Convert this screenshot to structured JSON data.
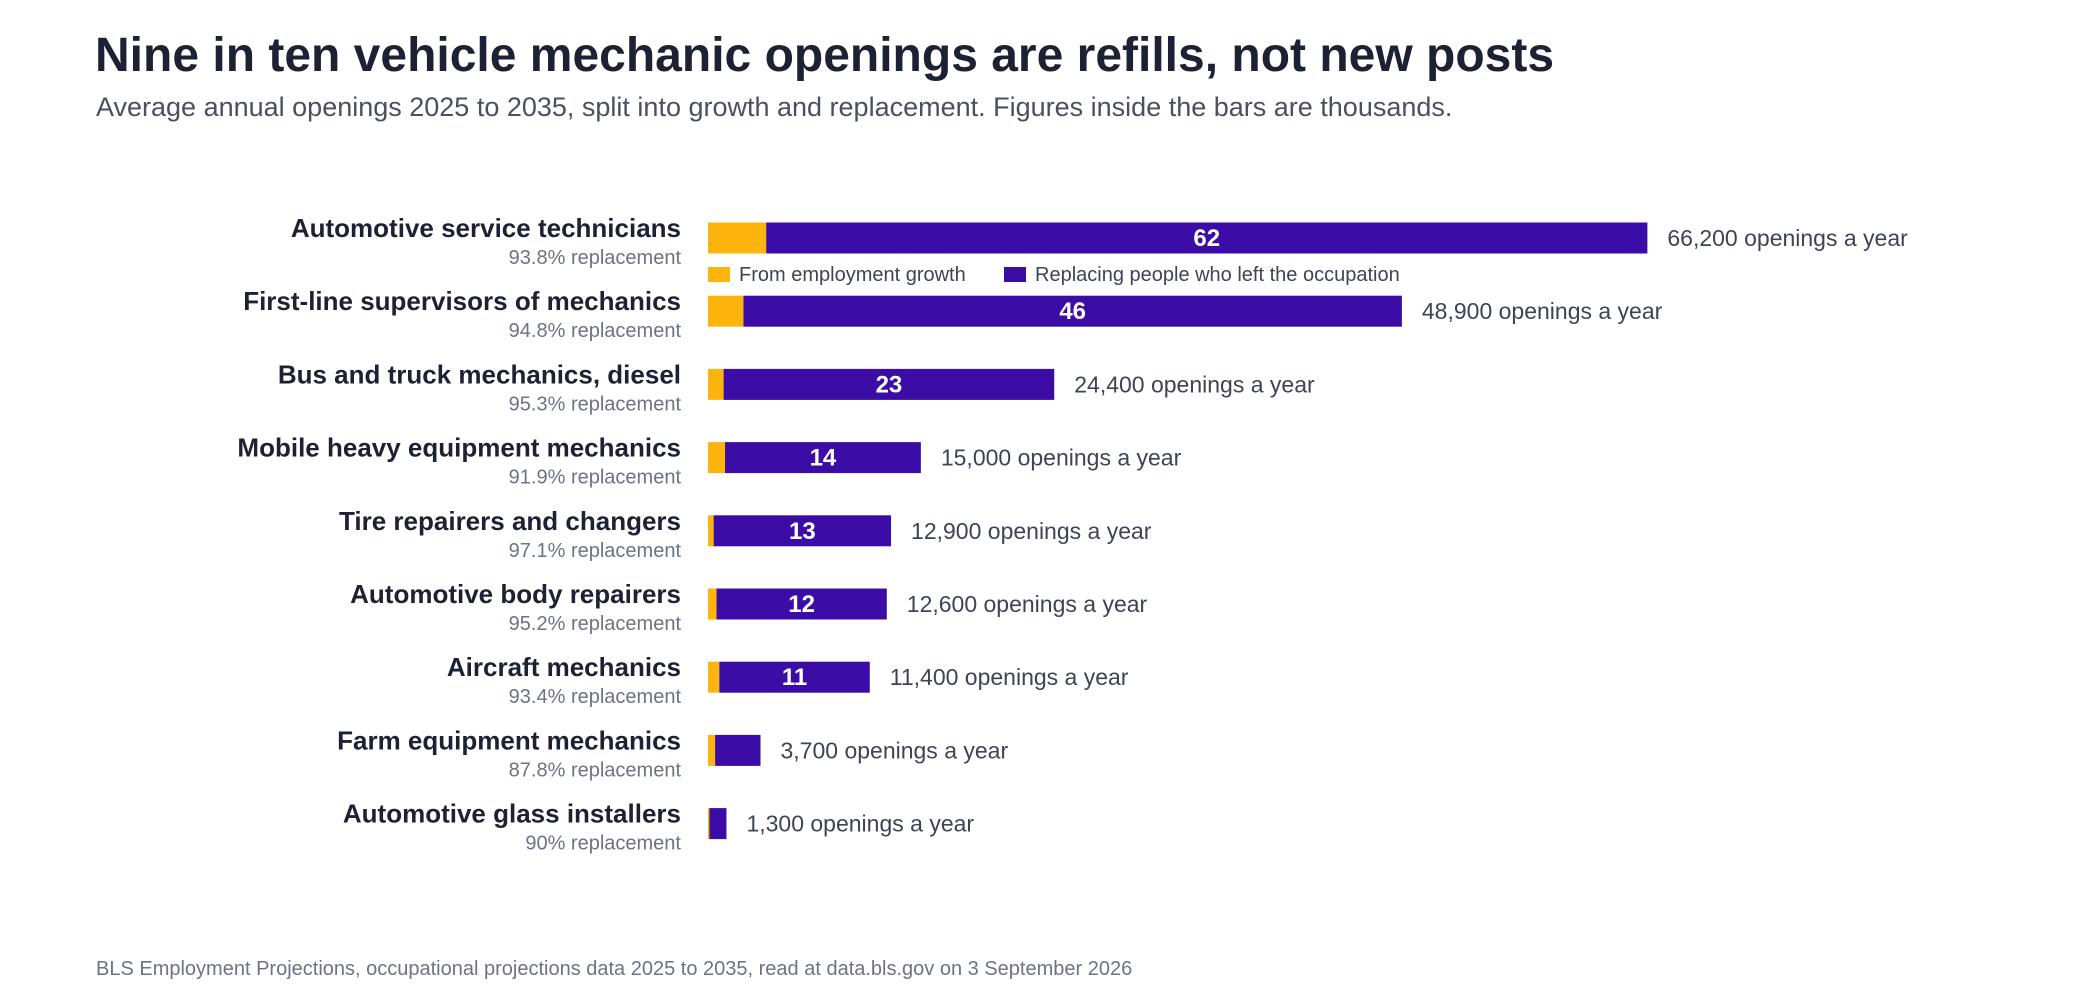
{
  "chart_data": {
    "type": "bar",
    "orientation": "horizontal",
    "stacked": true,
    "title": "Nine in ten vehicle mechanic openings are refills, not new posts",
    "subtitle": "Average annual openings 2025 to 2035, split into growth and replacement. Figures inside the bars are thousands.",
    "source": "BLS Employment Projections, occupational projections data 2025 to 2035, read at data.bls.gov on 3 September 2026",
    "legend": {
      "placement": "below first bar",
      "growth_label": "From employment growth",
      "replacement_label": "Replacing people who left the occupation"
    },
    "grid": false,
    "xlim": [
      0,
      66.2
    ],
    "categories": [
      "Automotive service technicians",
      "First-line supervisors of mechanics",
      "Bus and truck mechanics, diesel",
      "Mobile heavy equipment mechanics",
      "Tire repairers and changers",
      "Automotive body repairers",
      "Aircraft mechanics",
      "Farm equipment mechanics",
      "Automotive glass installers"
    ],
    "replacement_share_labels": [
      "93.8% replacement",
      "94.8% replacement",
      "95.3% replacement",
      "91.9% replacement",
      "97.1% replacement",
      "95.2% replacement",
      "93.4% replacement",
      "87.8% replacement",
      "90% replacement"
    ],
    "total_labels": [
      "66,200 openings a year",
      "48,900 openings a year",
      "24,400 openings a year",
      "15,000 openings a year",
      "12,900 openings a year",
      "12,600 openings a year",
      "11,400 openings a year",
      "3,700 openings a year",
      "1,300 openings a year"
    ],
    "inbar_labels": [
      "62",
      "46",
      "23",
      "14",
      "13",
      "12",
      "11",
      "",
      ""
    ],
    "series": [
      {
        "name": "From employment growth",
        "color": "#FDB50E",
        "values": [
          4.1,
          2.5,
          1.1,
          1.2,
          0.4,
          0.6,
          0.8,
          0.5,
          0.1
        ]
      },
      {
        "name": "Replacing people who left the occupation",
        "color": "#3B0DA6",
        "values": [
          62.1,
          46.4,
          23.3,
          13.8,
          12.5,
          12.0,
          10.6,
          3.2,
          1.2
        ]
      }
    ],
    "totals": [
      66.2,
      48.9,
      24.4,
      15.0,
      12.9,
      12.6,
      11.4,
      3.7,
      1.3
    ]
  }
}
